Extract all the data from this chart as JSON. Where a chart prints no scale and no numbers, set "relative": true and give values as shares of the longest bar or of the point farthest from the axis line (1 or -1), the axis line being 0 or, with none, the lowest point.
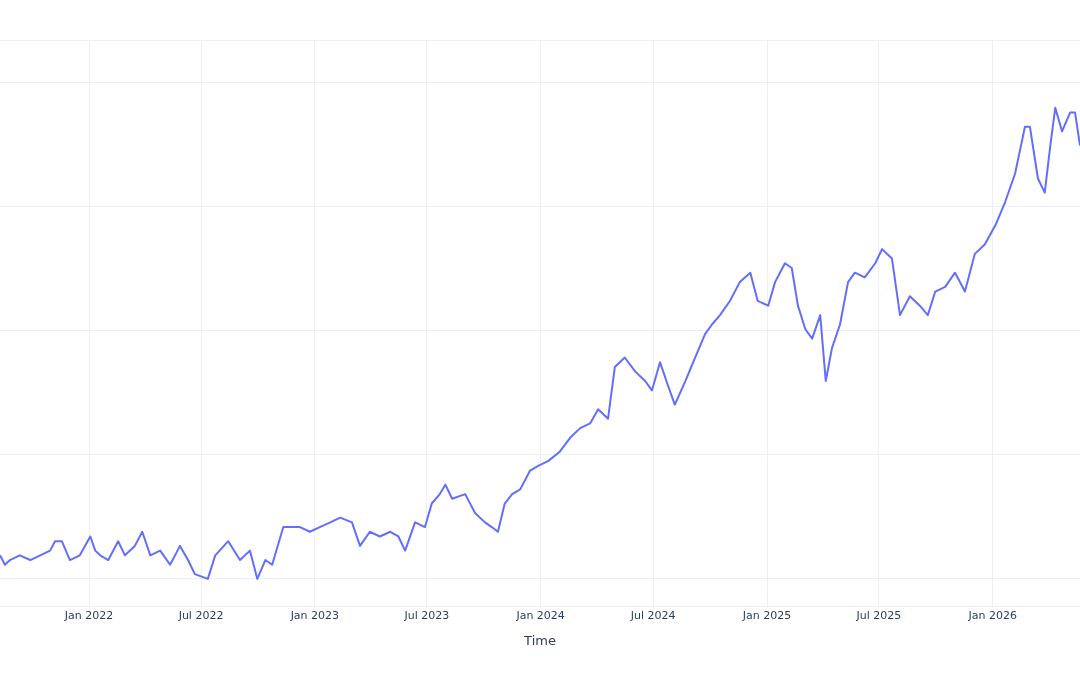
{
  "chart_data": {
    "type": "line",
    "xlabel": "Time",
    "relative": true,
    "grid": true,
    "legend": false,
    "marker": "none",
    "line_style": "solid",
    "xlim": [
      "2021-08-10",
      "2026-05-22"
    ],
    "xticks": [
      {
        "value": "2022-01",
        "label": "Jan 2022"
      },
      {
        "value": "2022-07",
        "label": "Jul 2022"
      },
      {
        "value": "2023-01",
        "label": "Jan 2023"
      },
      {
        "value": "2023-07",
        "label": "Jul 2023"
      },
      {
        "value": "2024-01",
        "label": "Jan 2024"
      },
      {
        "value": "2024-07",
        "label": "Jul 2024"
      },
      {
        "value": "2025-01",
        "label": "Jan 2025"
      },
      {
        "value": "2025-07",
        "label": "Jul 2025"
      },
      {
        "value": "2026-01",
        "label": "Jan 2026"
      }
    ],
    "x": [
      "2021-08-10",
      "2021-08-18",
      "2021-08-26",
      "2021-09-11",
      "2021-09-28",
      "2021-10-14",
      "2021-10-30",
      "2021-11-07",
      "2021-11-18",
      "2021-12-01",
      "2021-12-17",
      "2022-01-03",
      "2022-01-11",
      "2022-01-19",
      "2022-02-01",
      "2022-02-17",
      "2022-02-28",
      "2022-03-16",
      "2022-03-28",
      "2022-04-10",
      "2022-04-26",
      "2022-05-12",
      "2022-05-28",
      "2022-06-10",
      "2022-06-21",
      "2022-07-12",
      "2022-07-24",
      "2022-08-14",
      "2022-09-02",
      "2022-09-18",
      "2022-09-30",
      "2022-10-13",
      "2022-10-24",
      "2022-11-11",
      "2022-11-22",
      "2022-12-08",
      "2022-12-24",
      "2023-01-09",
      "2023-01-26",
      "2023-02-11",
      "2023-03-02",
      "2023-03-15",
      "2023-03-31",
      "2023-04-16",
      "2023-05-03",
      "2023-05-16",
      "2023-05-27",
      "2023-06-12",
      "2023-06-28",
      "2023-07-09",
      "2023-07-22",
      "2023-07-31",
      "2023-08-11",
      "2023-09-01",
      "2023-09-17",
      "2023-10-03",
      "2023-10-14",
      "2023-10-24",
      "2023-11-04",
      "2023-11-16",
      "2023-11-29",
      "2023-12-15",
      "2023-12-28",
      "2024-01-13",
      "2024-02-01",
      "2024-02-18",
      "2024-03-05",
      "2024-03-21",
      "2024-04-03",
      "2024-04-19",
      "2024-04-30",
      "2024-05-16",
      "2024-06-02",
      "2024-06-18",
      "2024-06-29",
      "2024-07-12",
      "2024-07-25",
      "2024-08-05",
      "2024-08-22",
      "2024-09-07",
      "2024-09-23",
      "2024-10-04",
      "2024-10-17",
      "2024-11-02",
      "2024-11-18",
      "2024-12-05",
      "2024-12-17",
      "2025-01-03",
      "2025-01-14",
      "2025-01-30",
      "2025-02-10",
      "2025-02-20",
      "2025-03-04",
      "2025-03-15",
      "2025-03-28",
      "2025-04-06",
      "2025-04-16",
      "2025-04-29",
      "2025-05-12",
      "2025-05-23",
      "2025-06-08",
      "2025-06-25",
      "2025-07-06",
      "2025-07-22",
      "2025-08-04",
      "2025-08-20",
      "2025-09-05",
      "2025-09-18",
      "2025-09-30",
      "2025-10-16",
      "2025-11-01",
      "2025-11-17",
      "2025-12-03",
      "2025-12-19",
      "2026-01-05",
      "2026-01-21",
      "2026-02-06",
      "2026-02-22",
      "2026-03-02",
      "2026-03-15",
      "2026-03-26",
      "2026-04-04",
      "2026-04-12",
      "2026-04-23",
      "2026-05-06",
      "2026-05-14",
      "2026-05-22"
    ],
    "series": [
      {
        "color": "#636efa",
        "values": [
          0.05,
          0.03,
          0.04,
          0.05,
          0.04,
          0.05,
          0.06,
          0.08,
          0.08,
          0.04,
          0.05,
          0.09,
          0.06,
          0.05,
          0.04,
          0.08,
          0.05,
          0.07,
          0.1,
          0.05,
          0.06,
          0.03,
          0.07,
          0.04,
          0.01,
          0,
          0.05,
          0.08,
          0.04,
          0.06,
          0.0,
          0.04,
          0.03,
          0.11,
          0.11,
          0.11,
          0.1,
          0.11,
          0.12,
          0.13,
          0.12,
          0.07,
          0.1,
          0.09,
          0.1,
          0.09,
          0.06,
          0.12,
          0.11,
          0.16,
          0.18,
          0.2,
          0.17,
          0.18,
          0.14,
          0.12,
          0.11,
          0.1,
          0.16,
          0.18,
          0.19,
          0.23,
          0.24,
          0.25,
          0.27,
          0.3,
          0.32,
          0.33,
          0.36,
          0.34,
          0.45,
          0.47,
          0.44,
          0.42,
          0.4,
          0.46,
          0.41,
          0.37,
          0.42,
          0.47,
          0.52,
          0.54,
          0.56,
          0.59,
          0.63,
          0.65,
          0.59,
          0.58,
          0.63,
          0.67,
          0.66,
          0.58,
          0.53,
          0.51,
          0.56,
          0.42,
          0.49,
          0.54,
          0.63,
          0.65,
          0.64,
          0.67,
          0.7,
          0.68,
          0.56,
          0.6,
          0.58,
          0.56,
          0.61,
          0.62,
          0.65,
          0.61,
          0.69,
          0.71,
          0.75,
          0.8,
          0.86,
          0.96,
          0.96,
          0.85,
          0.82,
          0.92,
          1,
          0.95,
          0.99,
          0.99,
          0.92
        ]
      }
    ]
  }
}
